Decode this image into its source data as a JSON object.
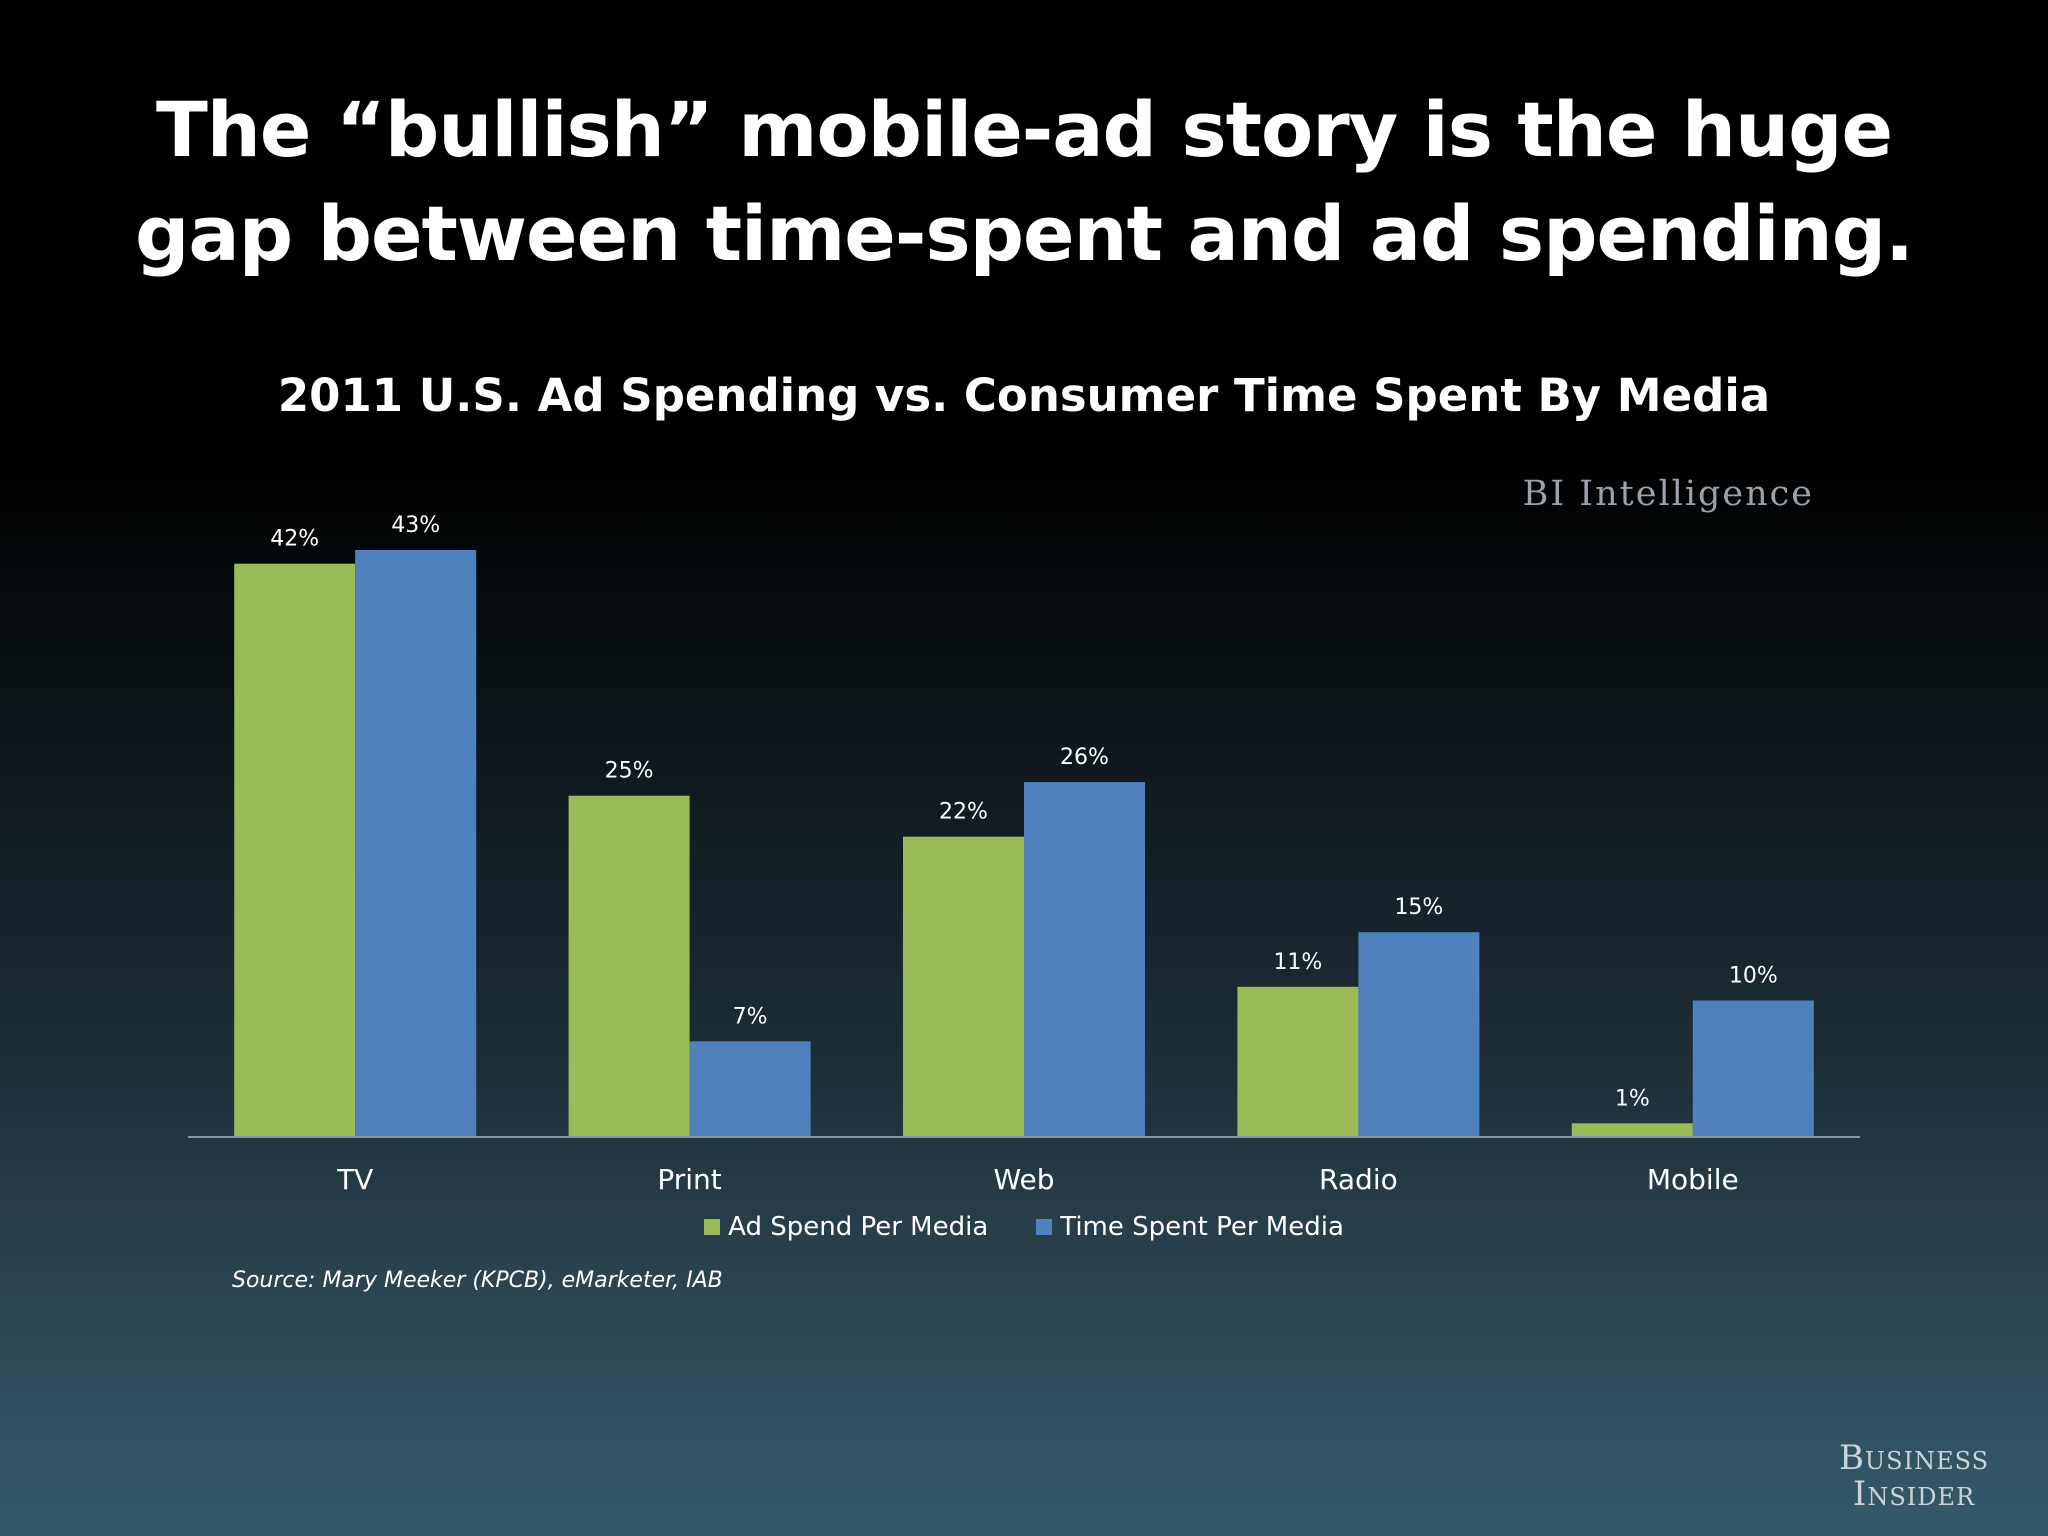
{
  "slide": {
    "title_line1": "The “bullish” mobile-ad story is the huge",
    "title_line2": "gap between time-spent and ad spending.",
    "watermark": "BI Intelligence",
    "source": "Source: Mary Meeker (KPCB), eMarketer, IAB",
    "logo_line1": "Business",
    "logo_line2": "Insider"
  },
  "chart_data": {
    "type": "bar",
    "title": "2011 U.S. Ad Spending vs. Consumer Time Spent By Media",
    "categories": [
      "TV",
      "Print",
      "Web",
      "Radio",
      "Mobile"
    ],
    "series": [
      {
        "name": "Ad Spend Per Media",
        "values": [
          42,
          25,
          22,
          11,
          1
        ],
        "color": "#9bbb59"
      },
      {
        "name": "Time Spent Per Media",
        "values": [
          43,
          7,
          26,
          15,
          10
        ],
        "color": "#4f81bd"
      }
    ],
    "unit": "%",
    "ylim": [
      0,
      43
    ],
    "grid": false,
    "legend": "bottom",
    "data_labels": true
  }
}
